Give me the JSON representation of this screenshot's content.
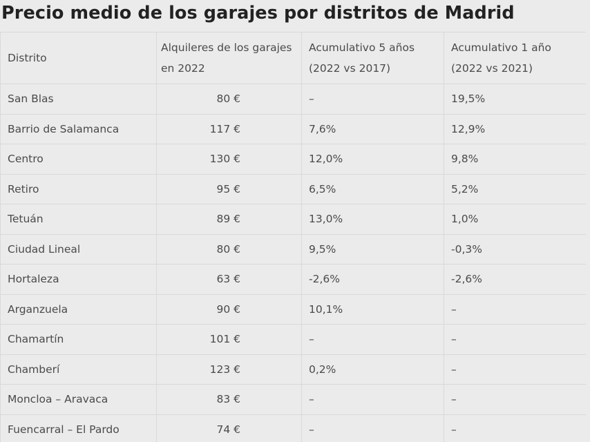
{
  "title": "Precio medio de los garajes por distritos de Madrid",
  "table": {
    "headers": [
      "Distrito",
      "Alquileres de los garajes en 2022",
      "Acumulativo 5 años (2022 vs 2017)",
      "Acumulativo 1 año (2022 vs 2021)"
    ],
    "rows": [
      [
        "San Blas",
        "80 €",
        "–",
        "19,5%"
      ],
      [
        "Barrio de Salamanca",
        "117 €",
        "7,6%",
        "12,9%"
      ],
      [
        "Centro",
        "130 €",
        "12,0%",
        "9,8%"
      ],
      [
        "Retiro",
        "95 €",
        "6,5%",
        "5,2%"
      ],
      [
        "Tetuán",
        "89 €",
        "13,0%",
        "1,0%"
      ],
      [
        "Ciudad Lineal",
        "80 €",
        "9,5%",
        "-0,3%"
      ],
      [
        "Hortaleza",
        "63 €",
        "-2,6%",
        "-2,6%"
      ],
      [
        "Arganzuela",
        "90 €",
        "10,1%",
        "–"
      ],
      [
        "Chamartín",
        "101 €",
        "–",
        "–"
      ],
      [
        "Chamberí",
        "123 €",
        "0,2%",
        "–"
      ],
      [
        "Moncloa – Aravaca",
        "83 €",
        "–",
        "–"
      ],
      [
        "Fuencarral – El Pardo",
        "74 €",
        "–",
        "–"
      ]
    ]
  }
}
